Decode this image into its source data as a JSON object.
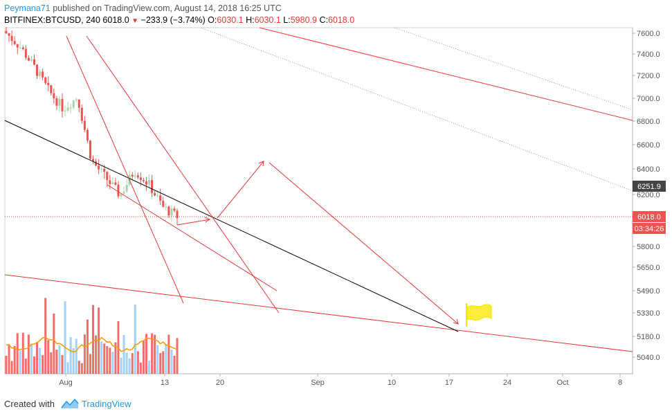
{
  "header": {
    "author": "Peymana71",
    "published_text": " published on TradingView.com, August 14, 2018 16:25 UTC",
    "symbol": "BITFINEX:BTCUSD, 240",
    "last": "6018.0",
    "change": "−233.9 (−3.74%)",
    "o_label": "O:",
    "o_val": "6030.1",
    "h_label": "H:",
    "h_val": "6030.1",
    "l_label": "L:",
    "l_val": "5980.9",
    "c_label": "C:",
    "c_val": "6018.0"
  },
  "footer": {
    "created_label": "Created with",
    "brand": "TradingView"
  },
  "colors": {
    "up": "#a5d6a7",
    "down": "#ef5350",
    "line_red": "#e53935",
    "ma_line": "#ff9800",
    "vol_up": "#90caf9",
    "vol_down": "#ef5350",
    "flag": "#ffeb3b",
    "current_price_bg": "#ef5350"
  },
  "chart_data": {
    "type": "candlestick",
    "symbol": "BITFINEX:BTCUSD",
    "interval": "240",
    "y_ticks": [
      7600.0,
      7400.0,
      7200.0,
      7000.0,
      6800.0,
      6600.0,
      6400.0,
      6200.0,
      5800.0,
      5650.0,
      5490.0,
      5330.0,
      5180.0,
      5040.0
    ],
    "x_ticks": [
      "Aug",
      "13",
      "20",
      "Sep",
      "10",
      "17",
      "24",
      "Oct",
      "8"
    ],
    "price_labels": [
      {
        "text": "6251.9",
        "kind": "dark"
      },
      {
        "text": "6018.0",
        "kind": "red"
      },
      {
        "text": "03:34:26",
        "kind": "red"
      }
    ],
    "current_price": 6018.0,
    "countdown": "03:34:26",
    "trend_level": 6251.9,
    "candles_close_sample": [
      7600,
      7480,
      7300,
      7100,
      6950,
      7050,
      6500,
      6350,
      6200,
      6420,
      6300,
      6100,
      6018
    ]
  }
}
